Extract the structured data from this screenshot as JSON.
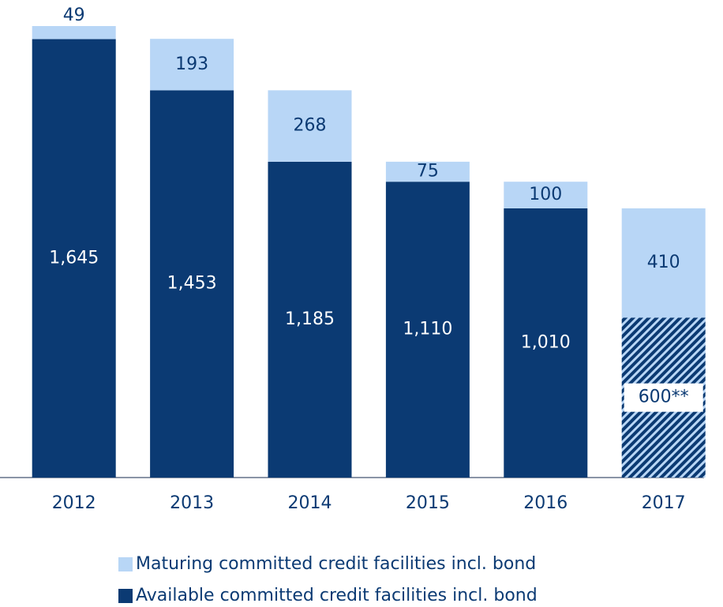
{
  "chart_data": {
    "type": "stacked_bar",
    "categories": [
      "2012",
      "2013",
      "2014",
      "2015",
      "2016",
      "2017"
    ],
    "series": [
      {
        "name": "Available committed credit facilities incl. bond",
        "color": "#0b3a73",
        "values": [
          1645,
          1453,
          1185,
          1110,
          1010,
          600
        ],
        "value_labels": [
          "1,645",
          "1,453",
          "1,185",
          "1,110",
          "1,010",
          "600**"
        ],
        "hatch": [
          false,
          false,
          false,
          false,
          false,
          true
        ]
      },
      {
        "name": "Maturing committed credit facilities incl. bond",
        "color": "#b8d6f6",
        "values": [
          49,
          193,
          268,
          75,
          100,
          410
        ],
        "value_labels": [
          "49",
          "193",
          "268",
          "75",
          "100",
          "410"
        ],
        "hatch": [
          false,
          false,
          false,
          false,
          false,
          false
        ]
      }
    ]
  }
}
